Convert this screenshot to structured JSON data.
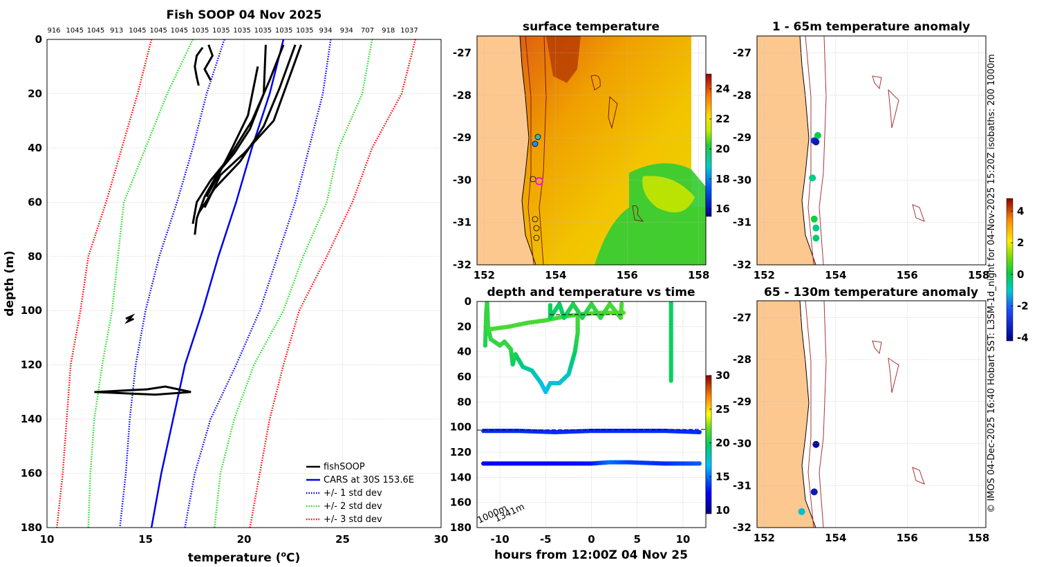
{
  "chart_data": [
    {
      "id": "profile",
      "type": "line",
      "title": "Fish SOOP 04 Nov 2025",
      "xlabel": "temperature (°C)",
      "xlabel_base": "temperature (",
      "xlabel_sup": "o",
      "xlabel_tail": "C)",
      "ylabel": "depth (m)",
      "xlim": [
        10,
        30
      ],
      "ylim": [
        180,
        0
      ],
      "xticks": [
        "10",
        "15",
        "20",
        "25",
        "30"
      ],
      "yticks": [
        "0",
        "20",
        "40",
        "60",
        "80",
        "100",
        "120",
        "140",
        "160",
        "180"
      ],
      "top_labels": [
        "916",
        "1045",
        "1045",
        "913",
        "1045",
        "1045",
        "1045",
        "1035",
        "1035",
        "1035",
        "1035",
        "1035",
        "1035",
        "934",
        "934",
        "707",
        "918",
        "1037"
      ],
      "legend": [
        "fishSOOP",
        "CARS at 30S 153.6E",
        "+/- 1 std dev",
        "+/- 2 std dev",
        "+/- 3 std dev"
      ],
      "depths": [
        0,
        20,
        40,
        60,
        80,
        100,
        120,
        140,
        160,
        180
      ],
      "cars_mean": [
        22.0,
        21.3,
        20.4,
        19.6,
        18.7,
        17.9,
        17.0,
        16.4,
        15.8,
        15.3
      ],
      "std1_low": [
        19.0,
        18.1,
        17.4,
        16.6,
        15.7,
        15.0,
        14.5,
        14.2,
        14.0,
        13.7
      ],
      "std1_high": [
        24.4,
        24.0,
        23.3,
        22.6,
        21.7,
        20.8,
        19.6,
        18.3,
        17.5,
        17.0
      ],
      "std2_low": [
        17.4,
        16.1,
        15.0,
        13.9,
        13.6,
        13.3,
        12.8,
        12.4,
        12.2,
        12.1
      ],
      "std2_high": [
        26.5,
        26.0,
        24.8,
        24.2,
        23.0,
        22.0,
        20.5,
        19.5,
        18.8,
        18.5
      ],
      "std3_low": [
        15.3,
        14.6,
        13.8,
        13.0,
        12.1,
        11.7,
        11.2,
        11.0,
        10.8,
        10.5
      ],
      "std3_high": [
        28.7,
        28.0,
        26.5,
        25.5,
        24.2,
        22.8,
        22.0,
        21.3,
        20.8,
        20.3
      ],
      "fishsoop_profiles": [
        {
          "temps": [
            17.9,
            17.6,
            17.5,
            17.6,
            17.7
          ],
          "depths": [
            3,
            6,
            10,
            14,
            17
          ]
        },
        {
          "temps": [
            18.2,
            18.4,
            18.0,
            18.3
          ],
          "depths": [
            2,
            6,
            11,
            15
          ]
        },
        {
          "temps": [
            21.1,
            21.0,
            20.3,
            19.5,
            18.7,
            18.0,
            17.6,
            17.5
          ],
          "depths": [
            2,
            20,
            33,
            42,
            49,
            58,
            66,
            72
          ]
        },
        {
          "temps": [
            22.0,
            21.3,
            20.4,
            19.2,
            18.3,
            17.6,
            17.4
          ],
          "depths": [
            2,
            15,
            30,
            44,
            52,
            60,
            68
          ]
        },
        {
          "temps": [
            22.6,
            21.8,
            21.0,
            19.8,
            18.5,
            17.7
          ],
          "depths": [
            2,
            18,
            32,
            45,
            55,
            64
          ]
        },
        {
          "temps": [
            22.9,
            22.2,
            21.5,
            20.0,
            18.8,
            18.0
          ],
          "depths": [
            2,
            16,
            30,
            42,
            50,
            62
          ]
        },
        {
          "temps": [
            20.7,
            20.2,
            19.4,
            18.7,
            18.1
          ],
          "depths": [
            10,
            28,
            40,
            50,
            58
          ]
        },
        {
          "temps": [
            14.0,
            14.3,
            14.1,
            14.4
          ],
          "depths": [
            103,
            102,
            104,
            103
          ]
        },
        {
          "temps": [
            12.5,
            15.1,
            16.0,
            17.3,
            15.5,
            12.4
          ],
          "depths": [
            130,
            129,
            128,
            130,
            131,
            130
          ]
        }
      ]
    },
    {
      "id": "surface",
      "type": "heatmap",
      "title": "surface temperature",
      "xlim": [
        151.8,
        158.2
      ],
      "ylim": [
        -32,
        -26.6
      ],
      "xticks": [
        "152",
        "154",
        "156",
        "158"
      ],
      "yticks": [
        "-27",
        "-28",
        "-29",
        "-30",
        "-31",
        "-32"
      ],
      "colorbar_ticks": [
        "24",
        "22",
        "20",
        "18",
        "16"
      ],
      "colorbar_range": [
        15.5,
        25
      ]
    },
    {
      "id": "anom1",
      "type": "scatter",
      "title": "1 - 65m temperature anomaly",
      "xlim": [
        151.8,
        158.2
      ],
      "ylim": [
        -32,
        -26.6
      ],
      "xticks": [
        "152",
        "154",
        "156",
        "158"
      ],
      "yticks": [
        "-27",
        "-28",
        "-29",
        "-30",
        "-31",
        "-32"
      ],
      "points": [
        {
          "lon": 153.5,
          "lat": -28.95,
          "value": 0.0
        },
        {
          "lon": 153.4,
          "lat": -29.07,
          "value": -3.0
        },
        {
          "lon": 153.45,
          "lat": -29.1,
          "value": -3.5
        },
        {
          "lon": 153.35,
          "lat": -29.95,
          "value": -0.5
        },
        {
          "lon": 153.4,
          "lat": -30.92,
          "value": 0.2
        },
        {
          "lon": 153.45,
          "lat": -31.13,
          "value": -0.5
        },
        {
          "lon": 153.45,
          "lat": -31.37,
          "value": -0.3
        }
      ]
    },
    {
      "id": "anom2",
      "type": "scatter",
      "title": "65 - 130m temperature anomaly",
      "xlim": [
        151.8,
        158.2
      ],
      "ylim": [
        -32,
        -26.6
      ],
      "xticks": [
        "152",
        "154",
        "156",
        "158"
      ],
      "yticks": [
        "-27",
        "-28",
        "-29",
        "-30",
        "-31",
        "-32"
      ],
      "points": [
        {
          "lon": 153.45,
          "lat": -30.02,
          "value": -4.0
        },
        {
          "lon": 153.4,
          "lat": -31.15,
          "value": -3.5
        },
        {
          "lon": 153.05,
          "lat": -31.62,
          "value": -1.2
        }
      ],
      "colorbar_ticks": [
        "4",
        "2",
        "0",
        "-2",
        "-4"
      ],
      "colorbar_range": [
        -4.2,
        4.8
      ]
    },
    {
      "id": "timeplot",
      "type": "scatter",
      "title": "depth and temperature vs time",
      "xlabel": "hours from 12:00Z 04 Nov 25",
      "xlim": [
        -12.5,
        12.5
      ],
      "ylim": [
        180,
        0
      ],
      "xticks": [
        "-10",
        "-5",
        "0",
        "5",
        "10"
      ],
      "yticks": [
        "0",
        "20",
        "40",
        "60",
        "80",
        "100",
        "120",
        "140",
        "160",
        "180"
      ],
      "colorbar_ticks": [
        "30",
        "25",
        "20",
        "15",
        "10"
      ],
      "colorbar_range": [
        9.5,
        30
      ],
      "tracks": [
        {
          "name": "shelf-track",
          "points": [
            [
              -11.6,
              35,
              20.5
            ],
            [
              -11.5,
              10,
              21
            ],
            [
              -11.4,
              0,
              21
            ],
            [
              -11.3,
              20,
              21
            ],
            [
              -11,
              30,
              21
            ],
            [
              -10,
              35,
              21
            ],
            [
              -9.5,
              32,
              21
            ],
            [
              -8.8,
              38,
              21
            ],
            [
              -8.6,
              50,
              20
            ],
            [
              -8.3,
              42,
              20.5
            ],
            [
              -7.5,
              52,
              19
            ],
            [
              -6.5,
              55,
              18.5
            ],
            [
              -5.5,
              65,
              17.5
            ],
            [
              -5,
              72,
              17
            ],
            [
              -4.5,
              65,
              17.5
            ],
            [
              -3.5,
              65,
              17.5
            ],
            [
              -2.5,
              58,
              18
            ],
            [
              -1.8,
              40,
              20
            ],
            [
              -1.5,
              25,
              21
            ],
            [
              -1.5,
              10,
              21.5
            ]
          ]
        },
        {
          "name": "surface-track",
          "points": [
            [
              -11,
              22,
              21.5
            ],
            [
              -9,
              20,
              21.5
            ],
            [
              -7,
              17,
              21.5
            ],
            [
              -5,
              15,
              21.5
            ],
            [
              -3,
              12,
              21.5
            ],
            [
              -1,
              10,
              21.5
            ],
            [
              1,
              9,
              22
            ],
            [
              3.5,
              9,
              22
            ]
          ]
        },
        {
          "name": "cluster",
          "points": [
            [
              -4.5,
              3,
              20
            ],
            [
              -4.5,
              13,
              20
            ],
            [
              -3.5,
              2,
              20
            ],
            [
              -3,
              13,
              20
            ],
            [
              -2,
              2,
              20.5
            ],
            [
              -1,
              13,
              20.5
            ],
            [
              0,
              2,
              21
            ],
            [
              1,
              13,
              21
            ],
            [
              2,
              2,
              21.5
            ],
            [
              3.2,
              13,
              21.5
            ],
            [
              3.3,
              2,
              21.5
            ]
          ]
        },
        {
          "name": "vertical",
          "points": [
            [
              8.7,
              0,
              20
            ],
            [
              8.7,
              20,
              20
            ],
            [
              8.7,
              40,
              20
            ],
            [
              8.7,
              63,
              20
            ]
          ]
        },
        {
          "name": "mooring-100",
          "points": [
            [
              -11.8,
              103,
              13.5
            ],
            [
              -8,
              103,
              13.5
            ],
            [
              -4,
              104,
              13.5
            ],
            [
              0,
              103,
              13.5
            ],
            [
              4,
              103,
              13.5
            ],
            [
              8,
              103,
              13.5
            ],
            [
              11.8,
              104,
              13.5
            ]
          ]
        },
        {
          "name": "mooring-130",
          "points": [
            [
              -11.8,
              129,
              12.5
            ],
            [
              -6,
              129,
              12.5
            ],
            [
              0,
              129,
              13
            ],
            [
              2,
              128,
              15
            ],
            [
              4,
              128,
              14
            ],
            [
              8,
              129,
              13.5
            ],
            [
              11.8,
              129,
              14.5
            ]
          ]
        }
      ],
      "annotation_labels": [
        "1341m",
        "1000m"
      ]
    }
  ],
  "side_note": "© IMOS 04-Dec-2025 16:40 Hobart SST: L3SM-1d_night for 04-Nov-2025 15:20Z isobaths: 200  1000m"
}
